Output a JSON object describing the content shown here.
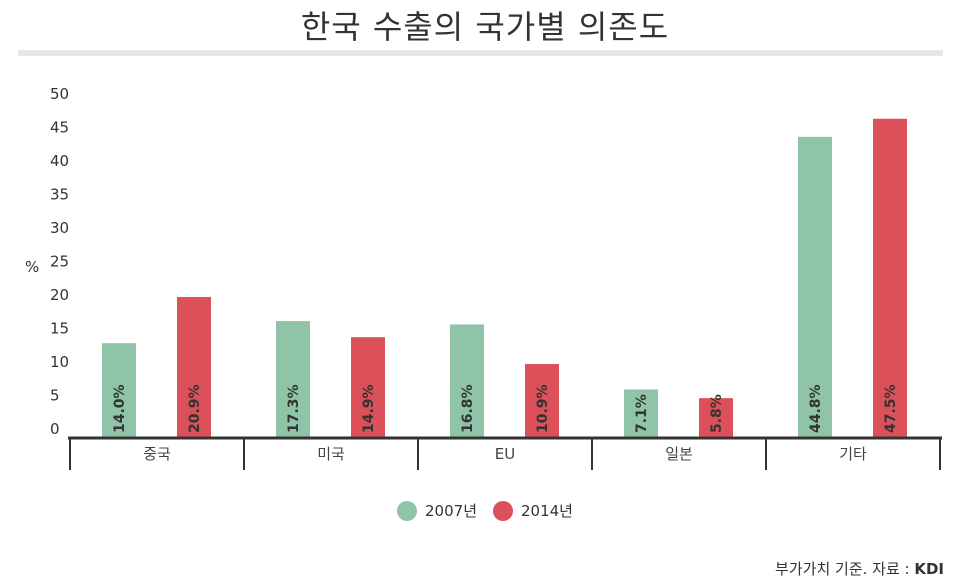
{
  "chart_data": {
    "type": "bar",
    "title": "한국 수출의 국가별 의존도",
    "ylabel": "%",
    "xlabel": "",
    "ylim": [
      0,
      50
    ],
    "yticks": [
      0,
      5,
      10,
      15,
      20,
      25,
      30,
      35,
      40,
      45,
      50
    ],
    "grid": false,
    "legend_position": "bottom",
    "categories": [
      "중국",
      "미국",
      "EU",
      "일본",
      "기타"
    ],
    "series": [
      {
        "name": "2007년",
        "color": "#8fc4a9",
        "values": [
          14.0,
          17.3,
          16.8,
          7.1,
          44.8
        ],
        "labels": [
          "14.0%",
          "17.3%",
          "16.8%",
          "7.1%",
          "44.8%"
        ]
      },
      {
        "name": "2014년",
        "color": "#dc5159",
        "values": [
          20.9,
          14.9,
          10.9,
          5.8,
          47.5
        ],
        "labels": [
          "20.9%",
          "14.9%",
          "10.9%",
          "5.8%",
          "47.5%"
        ]
      }
    ]
  },
  "source": {
    "prefix": "부가가치 기준. 자료 : ",
    "name": "KDI"
  }
}
